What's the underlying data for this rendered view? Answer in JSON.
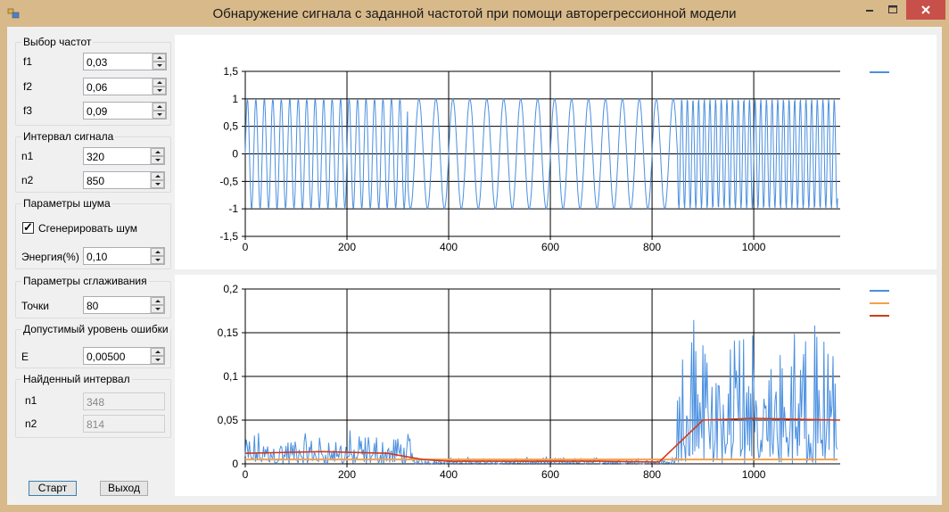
{
  "window": {
    "title": "Обнаружение сигнала с заданной частотой при помощи авторегрессионной модели"
  },
  "freq_group": {
    "title": "Выбор частот",
    "f1_label": "f1",
    "f1": "0,03",
    "f2_label": "f2",
    "f2": "0,06",
    "f3_label": "f3",
    "f3": "0,09"
  },
  "interval_group": {
    "title": "Интервал сигнала",
    "n1_label": "n1",
    "n1": "320",
    "n2_label": "n2",
    "n2": "850"
  },
  "noise_group": {
    "title": "Параметры шума",
    "generate_label": "Сгенерировать шум",
    "generate_checked": true,
    "energy_label": "Энергия(%)",
    "energy": "0,10"
  },
  "smooth_group": {
    "title": "Параметры сглаживания",
    "points_label": "Точки",
    "points": "80"
  },
  "error_group": {
    "title": "Допустимый уровень ошибки",
    "e_label": "E",
    "e": "0,00500"
  },
  "found_group": {
    "title": "Найденный интервал",
    "n1_label": "n1",
    "n1": "348",
    "n2_label": "n2",
    "n2": "814"
  },
  "buttons": {
    "start": "Старт",
    "exit": "Выход"
  },
  "colors": {
    "blue": "#4a8fe0",
    "orange": "#f2a14f",
    "red": "#d03b1a"
  },
  "chart_data": [
    {
      "type": "line",
      "xlim": [
        0,
        1170
      ],
      "ylim": [
        -1.5,
        1.5
      ],
      "x_ticks": [
        "0",
        "200",
        "400",
        "600",
        "800",
        "1000"
      ],
      "y_ticks": [
        "1,5",
        "1",
        "0,5",
        "0",
        "-0,5",
        "-1",
        "-1,5"
      ],
      "grid": true,
      "legend": "top-right",
      "series": [
        {
          "description": "sin signal, f=0.06 for x<320, f=0.03 for 320..850, f=0.09 for x>850",
          "freq_segments": [
            [
              0,
              320,
              0.06
            ],
            [
              320,
              850,
              0.03
            ],
            [
              850,
              1170,
              0.09
            ]
          ],
          "amplitude": 1,
          "color": "#4a8fe0"
        }
      ]
    },
    {
      "type": "line",
      "xlim": [
        0,
        1170
      ],
      "ylim": [
        0,
        0.2
      ],
      "x_ticks": [
        "0",
        "200",
        "400",
        "600",
        "800",
        "1000"
      ],
      "y_ticks": [
        "0,2",
        "0,15",
        "0,1",
        "0,05",
        "0"
      ],
      "grid": true,
      "legend": "top-right",
      "series": [
        {
          "description": "prediction error (noisy)",
          "color": "#4a8fe0",
          "segments": [
            [
              0,
              330,
              0.02
            ],
            [
              330,
              850,
              0.004
            ],
            [
              850,
              1170,
              0.08
            ]
          ]
        },
        {
          "description": "threshold E",
          "color": "#f2a14f",
          "value": 0.005
        },
        {
          "description": "smoothed error",
          "color": "#d03b1a",
          "points": [
            [
              0,
              0.012
            ],
            [
              150,
              0.014
            ],
            [
              280,
              0.012
            ],
            [
              348,
              0.005
            ],
            [
              400,
              0.003
            ],
            [
              700,
              0.003
            ],
            [
              814,
              0.002
            ],
            [
              900,
              0.05
            ],
            [
              1000,
              0.052
            ],
            [
              1170,
              0.05
            ]
          ]
        }
      ]
    }
  ]
}
